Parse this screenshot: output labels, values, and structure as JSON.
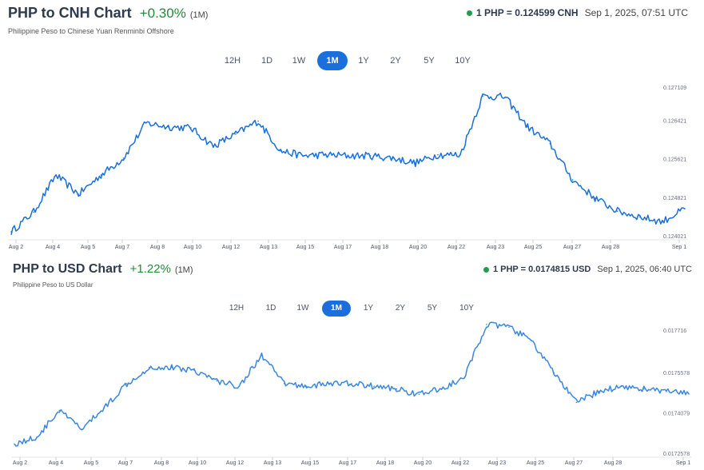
{
  "chart_data": [
    {
      "type": "line",
      "title": "PHP to CNH Chart",
      "change": "+0.30%",
      "period": "(1M)",
      "subtitle": "Philippine Peso to Chinese Yuan Renminbi Offshore",
      "rate": "1 PHP = 0.124599 CNH",
      "timestamp": "Sep 1, 2025, 07:51 UTC",
      "tabs": [
        "12H",
        "1D",
        "1W",
        "1M",
        "1Y",
        "2Y",
        "5Y",
        "10Y"
      ],
      "active_tab": "1M",
      "x_labels": [
        "Aug 2",
        "Aug 4",
        "Aug 5",
        "Aug 7",
        "Aug 8",
        "Aug 10",
        "Aug 12",
        "Aug 13",
        "Aug 15",
        "Aug 17",
        "Aug 18",
        "Aug 20",
        "Aug 22",
        "Aug 23",
        "Aug 25",
        "Aug 27",
        "Aug 28",
        "Sep 1"
      ],
      "y_ticks": [
        "0.127109",
        "0.126421",
        "0.125621",
        "0.124821",
        "0.124021"
      ],
      "ylim": [
        0.124021,
        0.127109
      ],
      "line_color": "#1a6fdc",
      "grid": false,
      "x": [
        "Aug 2",
        "Aug 3",
        "Aug 4",
        "Aug 5",
        "Aug 6",
        "Aug 7",
        "Aug 8",
        "Aug 9",
        "Aug 10",
        "Aug 11",
        "Aug 12",
        "Aug 13",
        "Aug 14",
        "Aug 15",
        "Aug 16",
        "Aug 17",
        "Aug 18",
        "Aug 19",
        "Aug 20",
        "Aug 21",
        "Aug 22",
        "Aug 23",
        "Aug 24",
        "Aug 25",
        "Aug 26",
        "Aug 27",
        "Aug 28",
        "Aug 29",
        "Aug 30",
        "Aug 31",
        "Sep 1"
      ],
      "values": [
        0.12412,
        0.12453,
        0.1253,
        0.1249,
        0.1253,
        0.12565,
        0.12638,
        0.1263,
        0.12628,
        0.1259,
        0.12615,
        0.12642,
        0.1258,
        0.1257,
        0.12572,
        0.1257,
        0.1257,
        0.12565,
        0.12555,
        0.12572,
        0.12572,
        0.12694,
        0.12692,
        0.1263,
        0.12595,
        0.1252,
        0.12482,
        0.12455,
        0.12443,
        0.12433,
        0.124599
      ]
    },
    {
      "type": "line",
      "title": "PHP to USD Chart",
      "change": "+1.22%",
      "period": "(1M)",
      "subtitle": "Philippine Peso to US Dollar",
      "rate": "1 PHP = 0.0174815 USD",
      "timestamp": "Sep 1, 2025, 06:40 UTC",
      "tabs": [
        "12H",
        "1D",
        "1W",
        "1M",
        "1Y",
        "2Y",
        "5Y",
        "10Y"
      ],
      "active_tab": "1M",
      "x_labels": [
        "Aug 2",
        "Aug 4",
        "Aug 5",
        "Aug 7",
        "Aug 8",
        "Aug 10",
        "Aug 12",
        "Aug 13",
        "Aug 15",
        "Aug 17",
        "Aug 18",
        "Aug 20",
        "Aug 22",
        "Aug 23",
        "Aug 25",
        "Aug 27",
        "Aug 28",
        "Sep 1"
      ],
      "y_ticks": [
        "0.017716",
        "0.0175578",
        "0.0174079",
        "0.0172578"
      ],
      "ylim": [
        0.0172578,
        0.017716
      ],
      "line_color": "#3a86e0",
      "grid": false,
      "x": [
        "Aug 2",
        "Aug 3",
        "Aug 4",
        "Aug 5",
        "Aug 6",
        "Aug 7",
        "Aug 8",
        "Aug 9",
        "Aug 10",
        "Aug 11",
        "Aug 12",
        "Aug 13",
        "Aug 14",
        "Aug 15",
        "Aug 16",
        "Aug 17",
        "Aug 18",
        "Aug 19",
        "Aug 20",
        "Aug 21",
        "Aug 22",
        "Aug 23",
        "Aug 24",
        "Aug 25",
        "Aug 26",
        "Aug 27",
        "Aug 28",
        "Aug 29",
        "Aug 30",
        "Aug 31",
        "Sep 1"
      ],
      "values": [
        0.017295,
        0.01732,
        0.01742,
        0.01735,
        0.01743,
        0.01752,
        0.01758,
        0.01758,
        0.01757,
        0.01753,
        0.01751,
        0.017625,
        0.01752,
        0.01751,
        0.01752,
        0.01752,
        0.01751,
        0.0175,
        0.01748,
        0.0175,
        0.01754,
        0.01774,
        0.01773,
        0.01768,
        0.01756,
        0.01745,
        0.01749,
        0.01751,
        0.0175,
        0.01749,
        0.0174815
      ]
    }
  ]
}
